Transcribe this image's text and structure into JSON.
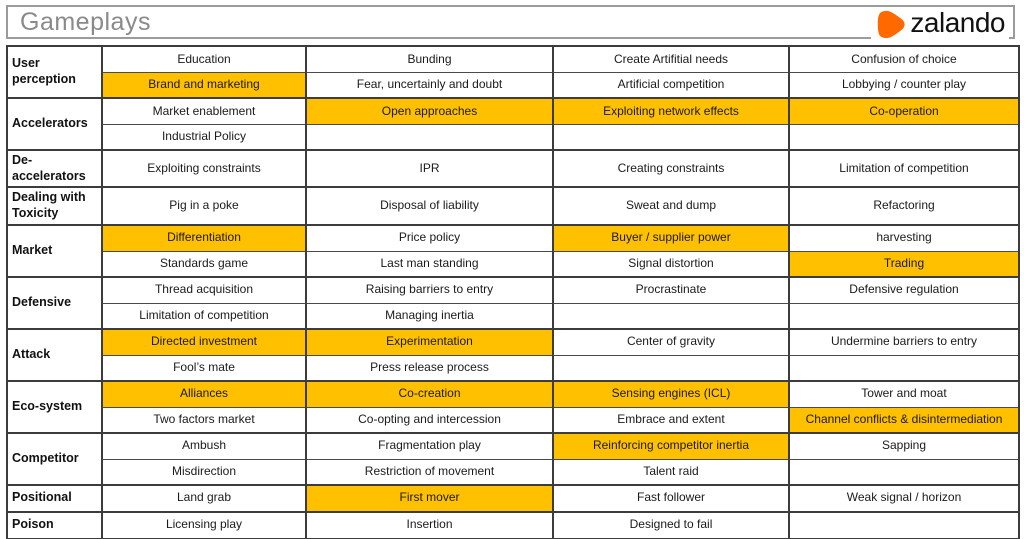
{
  "title": "Gameplays",
  "logo": {
    "brand": "zalando",
    "icon": "zalando-play-icon",
    "icon_color": "#FF6900"
  },
  "colors": {
    "highlight": "#FFC000",
    "border": "#3c3c3c",
    "title_text": "#8a8a8a"
  },
  "table": {
    "column_count": 4,
    "groups": [
      {
        "label": "User perception",
        "rows": [
          [
            {
              "t": "Education"
            },
            {
              "t": "Bunding"
            },
            {
              "t": "Create Artifitial needs"
            },
            {
              "t": "Confusion of choice"
            }
          ],
          [
            {
              "t": "Brand and marketing",
              "hl": true
            },
            {
              "t": "Fear, uncertainly and doubt"
            },
            {
              "t": "Artificial competition"
            },
            {
              "t": "Lobbying / counter play"
            }
          ]
        ]
      },
      {
        "label": "Accelerators",
        "rows": [
          [
            {
              "t": "Market enablement"
            },
            {
              "t": "Open approaches",
              "hl": true
            },
            {
              "t": "Exploiting network effects",
              "hl": true
            },
            {
              "t": "Co-operation",
              "hl": true
            }
          ],
          [
            {
              "t": "Industrial Policy"
            },
            {
              "t": ""
            },
            {
              "t": ""
            },
            {
              "t": ""
            }
          ]
        ]
      },
      {
        "label": "De-accelerators",
        "rows": [
          [
            {
              "t": "Exploiting constraints"
            },
            {
              "t": "IPR"
            },
            {
              "t": "Creating constraints"
            },
            {
              "t": "Limitation of competition"
            }
          ]
        ]
      },
      {
        "label": "Dealing with Toxicity",
        "rows": [
          [
            {
              "t": "Pig in a poke"
            },
            {
              "t": "Disposal of liability"
            },
            {
              "t": "Sweat and dump"
            },
            {
              "t": "Refactoring"
            }
          ]
        ]
      },
      {
        "label": "Market",
        "rows": [
          [
            {
              "t": "Differentiation",
              "hl": true
            },
            {
              "t": "Price policy"
            },
            {
              "t": "Buyer / supplier power",
              "hl": true
            },
            {
              "t": "harvesting"
            }
          ],
          [
            {
              "t": "Standards game"
            },
            {
              "t": "Last man standing"
            },
            {
              "t": "Signal distortion"
            },
            {
              "t": "Trading",
              "hl": true
            }
          ]
        ]
      },
      {
        "label": "Defensive",
        "rows": [
          [
            {
              "t": "Thread acquisition"
            },
            {
              "t": "Raising barriers to entry"
            },
            {
              "t": "Procrastinate"
            },
            {
              "t": "Defensive regulation"
            }
          ],
          [
            {
              "t": "Limitation of competition"
            },
            {
              "t": "Managing inertia"
            },
            {
              "t": ""
            },
            {
              "t": ""
            }
          ]
        ]
      },
      {
        "label": "Attack",
        "rows": [
          [
            {
              "t": "Directed investment",
              "hl": true
            },
            {
              "t": "Experimentation",
              "hl": true
            },
            {
              "t": "Center of gravity"
            },
            {
              "t": "Undermine barriers to entry"
            }
          ],
          [
            {
              "t": "Fool’s mate"
            },
            {
              "t": "Press release process"
            },
            {
              "t": ""
            },
            {
              "t": ""
            }
          ]
        ]
      },
      {
        "label": "Eco-system",
        "rows": [
          [
            {
              "t": "Alliances",
              "hl": true
            },
            {
              "t": "Co-creation",
              "hl": true
            },
            {
              "t": "Sensing engines (ICL)",
              "hl": true
            },
            {
              "t": "Tower and moat"
            }
          ],
          [
            {
              "t": "Two factors market"
            },
            {
              "t": "Co-opting and intercession"
            },
            {
              "t": "Embrace and extent"
            },
            {
              "t": "Channel conflicts & disintermediation",
              "hl": true
            }
          ]
        ]
      },
      {
        "label": "Competitor",
        "rows": [
          [
            {
              "t": "Ambush"
            },
            {
              "t": "Fragmentation play"
            },
            {
              "t": "Reinforcing competitor inertia",
              "hl": true
            },
            {
              "t": "Sapping"
            }
          ],
          [
            {
              "t": "Misdirection"
            },
            {
              "t": "Restriction of movement"
            },
            {
              "t": "Talent raid"
            },
            {
              "t": ""
            }
          ]
        ]
      },
      {
        "label": "Positional",
        "rows": [
          [
            {
              "t": "Land grab"
            },
            {
              "t": "First mover",
              "hl": true
            },
            {
              "t": "Fast follower"
            },
            {
              "t": "Weak signal / horizon"
            }
          ]
        ]
      },
      {
        "label": "Poison",
        "rows": [
          [
            {
              "t": "Licensing play"
            },
            {
              "t": "Insertion"
            },
            {
              "t": "Designed to fail"
            },
            {
              "t": ""
            }
          ]
        ]
      }
    ]
  }
}
